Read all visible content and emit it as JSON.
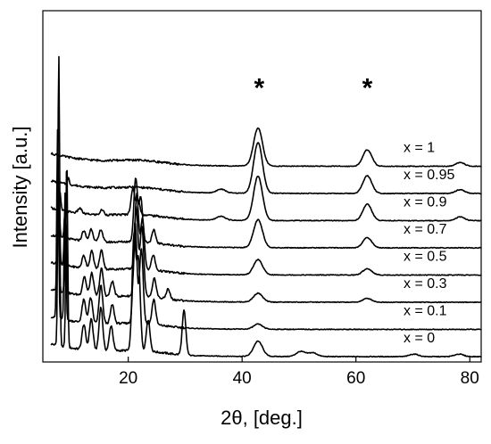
{
  "chart_data": {
    "type": "line",
    "title": "",
    "xlabel": "2θ, [deg.]",
    "ylabel": "Intensity [a.u.]",
    "xlim": [
      5,
      82
    ],
    "xticks": [
      20,
      40,
      60,
      80
    ],
    "yticks_shown": false,
    "grid": false,
    "legend": "none (series labelled at right end of each trace)",
    "colors": {
      "trace": "#000000",
      "axis": "#000000"
    },
    "annotations": [
      {
        "text": "*",
        "x": 43
      },
      {
        "text": "*",
        "x": 62
      }
    ],
    "series": [
      {
        "label": "x = 0",
        "offset": 0,
        "peaks": [
          [
            7.8,
            230
          ],
          [
            9.2,
            150
          ],
          [
            12.2,
            20
          ],
          [
            13.5,
            25
          ],
          [
            15.2,
            35
          ],
          [
            17.0,
            20
          ],
          [
            21.0,
            90
          ],
          [
            21.8,
            70
          ],
          [
            23.5,
            25
          ],
          [
            29.8,
            35
          ],
          [
            42.8,
            12
          ],
          [
            50.3,
            4
          ],
          [
            52.4,
            3
          ],
          [
            70.2,
            2
          ],
          [
            78.1,
            2
          ]
        ]
      },
      {
        "label": "x = 0.1",
        "offset": 1,
        "peaks": [
          [
            7.6,
            150
          ],
          [
            8.9,
            100
          ],
          [
            12.2,
            18
          ],
          [
            13.4,
            20
          ],
          [
            15.2,
            30
          ],
          [
            17.2,
            15
          ],
          [
            21.2,
            80
          ],
          [
            22.3,
            60
          ],
          [
            24.5,
            20
          ],
          [
            42.8,
            4
          ]
        ]
      },
      {
        "label": "x = 0.3",
        "offset": 2,
        "peaks": [
          [
            7.7,
            95
          ],
          [
            9.0,
            55
          ],
          [
            12.3,
            15
          ],
          [
            13.6,
            18
          ],
          [
            15.3,
            22
          ],
          [
            17.2,
            12
          ],
          [
            21.4,
            70
          ],
          [
            22.4,
            55
          ],
          [
            24.6,
            15
          ],
          [
            27.0,
            8
          ],
          [
            42.8,
            7
          ],
          [
            62.0,
            3
          ]
        ]
      },
      {
        "label": "x = 0.5",
        "offset": 3,
        "peaks": [
          [
            7.8,
            60
          ],
          [
            8.9,
            40
          ],
          [
            12.2,
            10
          ],
          [
            13.6,
            14
          ],
          [
            15.3,
            15
          ],
          [
            21.5,
            60
          ],
          [
            22.5,
            40
          ],
          [
            24.4,
            12
          ],
          [
            42.8,
            12
          ],
          [
            62.0,
            5
          ]
        ]
      },
      {
        "label": "x = 0.7",
        "offset": 4,
        "peaks": [
          [
            7.8,
            30
          ],
          [
            8.9,
            20
          ],
          [
            12.2,
            8
          ],
          [
            13.5,
            10
          ],
          [
            15.2,
            10
          ],
          [
            21.3,
            50
          ],
          [
            22.2,
            35
          ],
          [
            24.5,
            10
          ],
          [
            42.8,
            22
          ],
          [
            62.0,
            8
          ]
        ]
      },
      {
        "label": "x = 0.9",
        "offset": 5,
        "peaks": [
          [
            8.0,
            14
          ],
          [
            11.5,
            4
          ],
          [
            15.4,
            4
          ],
          [
            20.8,
            20
          ],
          [
            21.7,
            12
          ],
          [
            36.3,
            3
          ],
          [
            42.8,
            35
          ],
          [
            62.0,
            13
          ],
          [
            78.3,
            3
          ]
        ]
      },
      {
        "label": "x = 0.95",
        "offset": 6,
        "peaks": [
          [
            9.5,
            5
          ],
          [
            36.3,
            3
          ],
          [
            42.8,
            40
          ],
          [
            62.0,
            14
          ],
          [
            78.3,
            3
          ]
        ]
      },
      {
        "label": "x = 1",
        "offset": 7,
        "peaks": [
          [
            42.8,
            30
          ],
          [
            62.0,
            13
          ],
          [
            78.3,
            3
          ]
        ]
      }
    ]
  }
}
